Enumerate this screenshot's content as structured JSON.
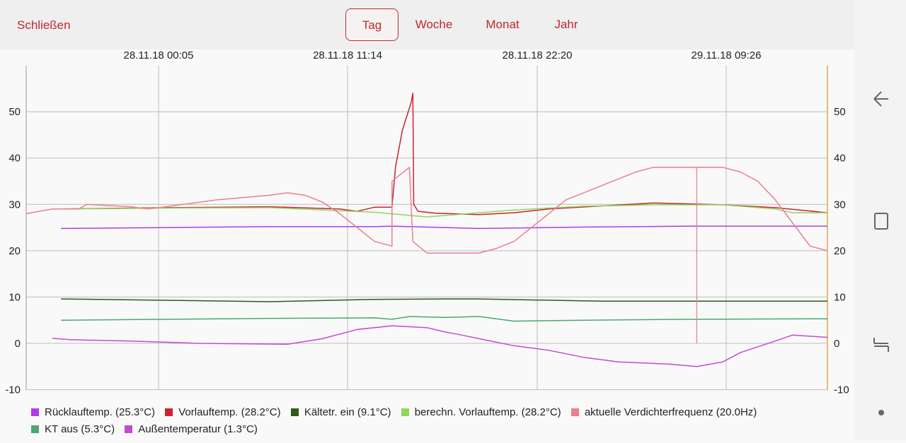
{
  "header": {
    "close_label": "Schließen",
    "tabs": [
      {
        "label": "Tag",
        "active": true
      },
      {
        "label": "Woche",
        "active": false
      },
      {
        "label": "Monat",
        "active": false
      },
      {
        "label": "Jahr",
        "active": false
      }
    ]
  },
  "accent_color": "#c0282e",
  "nav": {
    "icons": [
      "back-icon",
      "recents-icon",
      "home-icon",
      "dot-icon"
    ]
  },
  "chart_data": {
    "type": "line",
    "title": "",
    "xlabel": "",
    "ylabel": "",
    "ylim": [
      -10,
      60
    ],
    "y_ticks": [
      "-10",
      "0",
      "10",
      "20",
      "30",
      "40",
      "50"
    ],
    "x_labels": [
      "28.11.18 00:05",
      "28.11.18 11:14",
      "28.11.18 22:20",
      "29.11.18 09:26"
    ],
    "grid": true,
    "legend_position": "bottom",
    "series": [
      {
        "name": "Rücklauftemp. (25.3°C)",
        "color": "#b03de3",
        "points": [
          [
            2,
            24.8
          ],
          [
            8,
            25.0
          ],
          [
            14,
            25.2
          ],
          [
            20,
            25.2
          ],
          [
            21,
            25.3
          ],
          [
            26,
            24.8
          ],
          [
            32,
            25.1
          ],
          [
            38,
            25.3
          ],
          [
            46,
            25.3
          ]
        ]
      },
      {
        "name": "Vorlauftemp. (28.2°C)",
        "color": "#cc2233",
        "points": [
          [
            2,
            29.0
          ],
          [
            8,
            29.3
          ],
          [
            14,
            29.5
          ],
          [
            18,
            29.0
          ],
          [
            19,
            28.5
          ],
          [
            20,
            29.4
          ],
          [
            21,
            29.4
          ],
          [
            21.2,
            38
          ],
          [
            21.6,
            46
          ],
          [
            22.1,
            52
          ],
          [
            22.2,
            54
          ],
          [
            22.25,
            30
          ],
          [
            22.5,
            28.5
          ],
          [
            23.5,
            28.1
          ],
          [
            26,
            27.8
          ],
          [
            28,
            28.2
          ],
          [
            30,
            29.0
          ],
          [
            36,
            30.3
          ],
          [
            40,
            29.9
          ],
          [
            43,
            29.3
          ],
          [
            46,
            28.2
          ]
        ]
      },
      {
        "name": "Kältetr. ein (9.1°C)",
        "color": "#2e5a1c",
        "points": [
          [
            2,
            9.6
          ],
          [
            8,
            9.3
          ],
          [
            14,
            9.0
          ],
          [
            20,
            9.5
          ],
          [
            24,
            9.6
          ],
          [
            26,
            9.6
          ],
          [
            33,
            9.1
          ],
          [
            40,
            9.1
          ],
          [
            46,
            9.1
          ]
        ]
      },
      {
        "name": "berechn. Vorlauftemp. (28.2°C)",
        "color": "#8fd65a",
        "points": [
          [
            2,
            29.0
          ],
          [
            8,
            29.2
          ],
          [
            14,
            29.3
          ],
          [
            20,
            28.3
          ],
          [
            23,
            27.3
          ],
          [
            28,
            28.8
          ],
          [
            32,
            29.6
          ],
          [
            36,
            29.9
          ],
          [
            40,
            29.9
          ],
          [
            43,
            29.0
          ],
          [
            44,
            28.2
          ],
          [
            46,
            28.2
          ]
        ]
      },
      {
        "name": "aktuelle Verdichterfrequenz (20.0Hz)",
        "color": "#ea7f8e",
        "points": [
          [
            0,
            28
          ],
          [
            1.5,
            29
          ],
          [
            3,
            29
          ],
          [
            3.5,
            30
          ],
          [
            6,
            29.5
          ],
          [
            7,
            29
          ],
          [
            8,
            29.5
          ],
          [
            11,
            31
          ],
          [
            14,
            32
          ],
          [
            15,
            32.5
          ],
          [
            16,
            32
          ],
          [
            17,
            30.5
          ],
          [
            18,
            28
          ],
          [
            19,
            25
          ],
          [
            20,
            22
          ],
          [
            21,
            21
          ],
          [
            21,
            35
          ],
          [
            22,
            38
          ],
          [
            22.2,
            22
          ],
          [
            23,
            19.5
          ],
          [
            26,
            19.5
          ],
          [
            27,
            20.5
          ],
          [
            28,
            22
          ],
          [
            29,
            25
          ],
          [
            30,
            28
          ],
          [
            31,
            31
          ],
          [
            33,
            34
          ],
          [
            35,
            37
          ],
          [
            36,
            38
          ],
          [
            39,
            38
          ],
          [
            40,
            38
          ],
          [
            41,
            37
          ],
          [
            42,
            35
          ],
          [
            43,
            31
          ],
          [
            44,
            26
          ],
          [
            45,
            21
          ],
          [
            46,
            20
          ]
        ]
      },
      {
        "name": "KT aus (5.3°C)",
        "color": "#4aa86e",
        "points": [
          [
            2,
            5.0
          ],
          [
            8,
            5.2
          ],
          [
            14,
            5.4
          ],
          [
            20,
            5.5
          ],
          [
            21,
            5.2
          ],
          [
            22,
            5.8
          ],
          [
            24,
            5.6
          ],
          [
            26,
            5.8
          ],
          [
            28,
            4.8
          ],
          [
            32,
            5.0
          ],
          [
            38,
            5.2
          ],
          [
            46,
            5.3
          ]
        ]
      },
      {
        "name": "Außentemperatur (1.3°C)",
        "color": "#c24ccf",
        "points": [
          [
            1.5,
            1.1
          ],
          [
            2.5,
            0.8
          ],
          [
            6,
            0.5
          ],
          [
            10,
            0
          ],
          [
            15,
            -0.2
          ],
          [
            17,
            1
          ],
          [
            19,
            3
          ],
          [
            21,
            3.8
          ],
          [
            23,
            3.4
          ],
          [
            24,
            2.5
          ],
          [
            25,
            1.8
          ],
          [
            26,
            1.0
          ],
          [
            28,
            -0.5
          ],
          [
            30,
            -1.5
          ],
          [
            32,
            -3
          ],
          [
            34,
            -4
          ],
          [
            37,
            -4.5
          ],
          [
            38.5,
            -5
          ],
          [
            40,
            -4
          ],
          [
            41,
            -2
          ],
          [
            43,
            0.5
          ],
          [
            44,
            1.8
          ],
          [
            46,
            1.3
          ]
        ]
      }
    ]
  }
}
